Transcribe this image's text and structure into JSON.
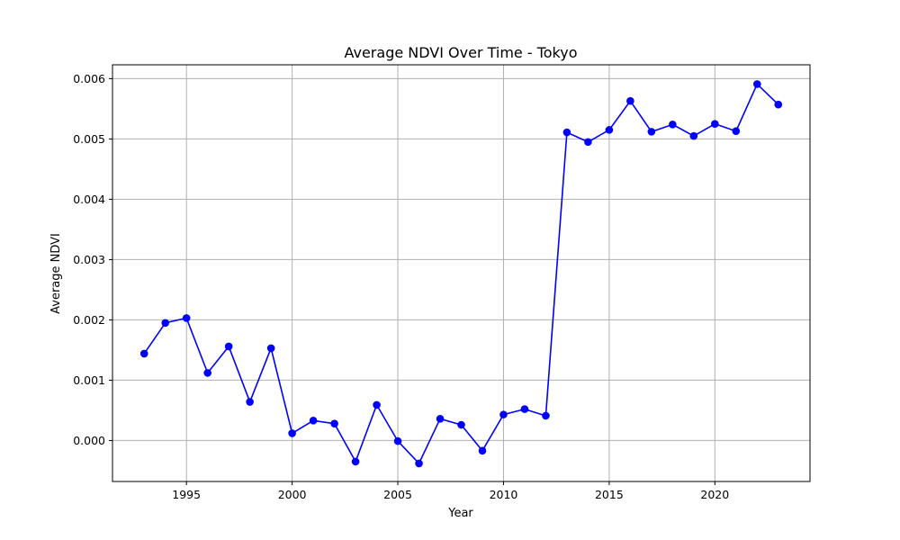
{
  "chart_data": {
    "type": "line",
    "title": "Average NDVI Over Time - Tokyo",
    "xlabel": "Year",
    "ylabel": "Average NDVI",
    "xlim": [
      1991.5,
      2024.5
    ],
    "ylim": [
      -0.00068,
      0.00623
    ],
    "x_ticks": [
      1995,
      2000,
      2005,
      2010,
      2015,
      2020
    ],
    "x_tick_labels": [
      "1995",
      "2000",
      "2005",
      "2010",
      "2015",
      "2020"
    ],
    "y_ticks": [
      0.0,
      0.001,
      0.002,
      0.003,
      0.004,
      0.005,
      0.006
    ],
    "y_tick_labels": [
      "0.000",
      "0.001",
      "0.002",
      "0.003",
      "0.004",
      "0.005",
      "0.006"
    ],
    "grid": true,
    "line_color": "#0000ff",
    "marker": "circle",
    "series": [
      {
        "x": [
          1993,
          1994,
          1995,
          1996,
          1997,
          1998,
          1999,
          2000,
          2001,
          2002,
          2003,
          2004,
          2005,
          2006,
          2007,
          2008,
          2009,
          2010,
          2011,
          2012,
          2013,
          2014,
          2015,
          2016,
          2017,
          2018,
          2019,
          2020,
          2021,
          2022,
          2023
        ],
        "values": [
          0.00144,
          0.00195,
          0.00203,
          0.00112,
          0.00156,
          0.00064,
          0.00153,
          0.00012,
          0.00033,
          0.00028,
          -0.00035,
          0.00059,
          -1e-05,
          -0.00038,
          0.00036,
          0.00026,
          -0.00017,
          0.00043,
          0.00052,
          0.00041,
          0.00511,
          0.00495,
          0.00515,
          0.00563,
          0.00512,
          0.00524,
          0.00505,
          0.00525,
          0.00513,
          0.00591,
          0.00557
        ]
      }
    ]
  }
}
